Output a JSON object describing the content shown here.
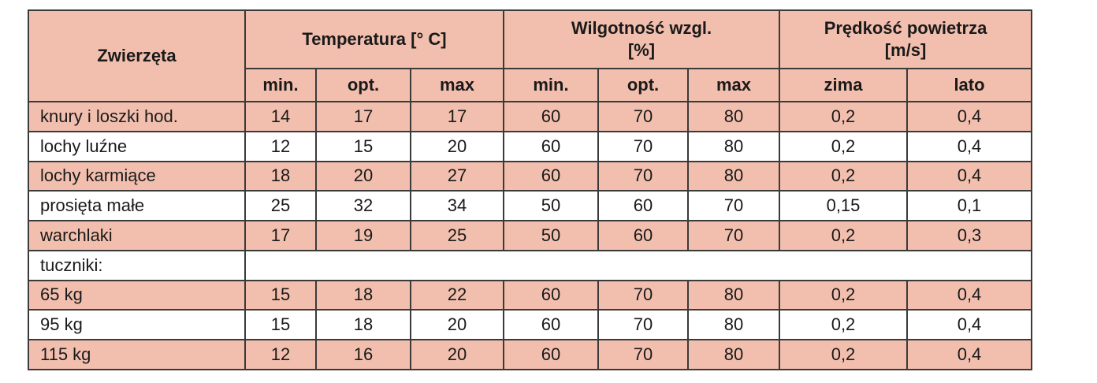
{
  "table": {
    "first_header": "Zwierzęta",
    "groups": [
      {
        "lines": [
          "Temperatura [° C]"
        ],
        "sub": [
          "min.",
          "opt.",
          "max"
        ]
      },
      {
        "lines": [
          "Wilgotność wzgl.",
          "[%]"
        ],
        "sub": [
          "min.",
          "opt.",
          "max"
        ]
      },
      {
        "lines": [
          "Prędkość powietrza",
          "[m/s]"
        ],
        "sub": [
          "zima",
          "lato"
        ]
      }
    ],
    "rows": [
      {
        "label": "knury i loszki hod.",
        "values": [
          "14",
          "17",
          "17",
          "60",
          "70",
          "80",
          "0,2",
          "0,4"
        ]
      },
      {
        "label": "lochy luźne",
        "values": [
          "12",
          "15",
          "20",
          "60",
          "70",
          "80",
          "0,2",
          "0,4"
        ]
      },
      {
        "label": "lochy karmiące",
        "values": [
          "18",
          "20",
          "27",
          "60",
          "70",
          "80",
          "0,2",
          "0,4"
        ]
      },
      {
        "label": "prosięta małe",
        "values": [
          "25",
          "32",
          "34",
          "50",
          "60",
          "70",
          "0,15",
          "0,1"
        ]
      },
      {
        "label": "warchlaki",
        "values": [
          "17",
          "19",
          "25",
          "50",
          "60",
          "70",
          "0,2",
          "0,3"
        ]
      },
      {
        "label": "tuczniki:"
      },
      {
        "label": "65 kg",
        "values": [
          "15",
          "18",
          "22",
          "60",
          "70",
          "80",
          "0,2",
          "0,4"
        ]
      },
      {
        "label": "95 kg",
        "values": [
          "15",
          "18",
          "20",
          "60",
          "70",
          "80",
          "0,2",
          "0,4"
        ]
      },
      {
        "label": "115 kg",
        "values": [
          "12",
          "16",
          "20",
          "60",
          "70",
          "80",
          "0,2",
          "0,4"
        ]
      }
    ]
  }
}
